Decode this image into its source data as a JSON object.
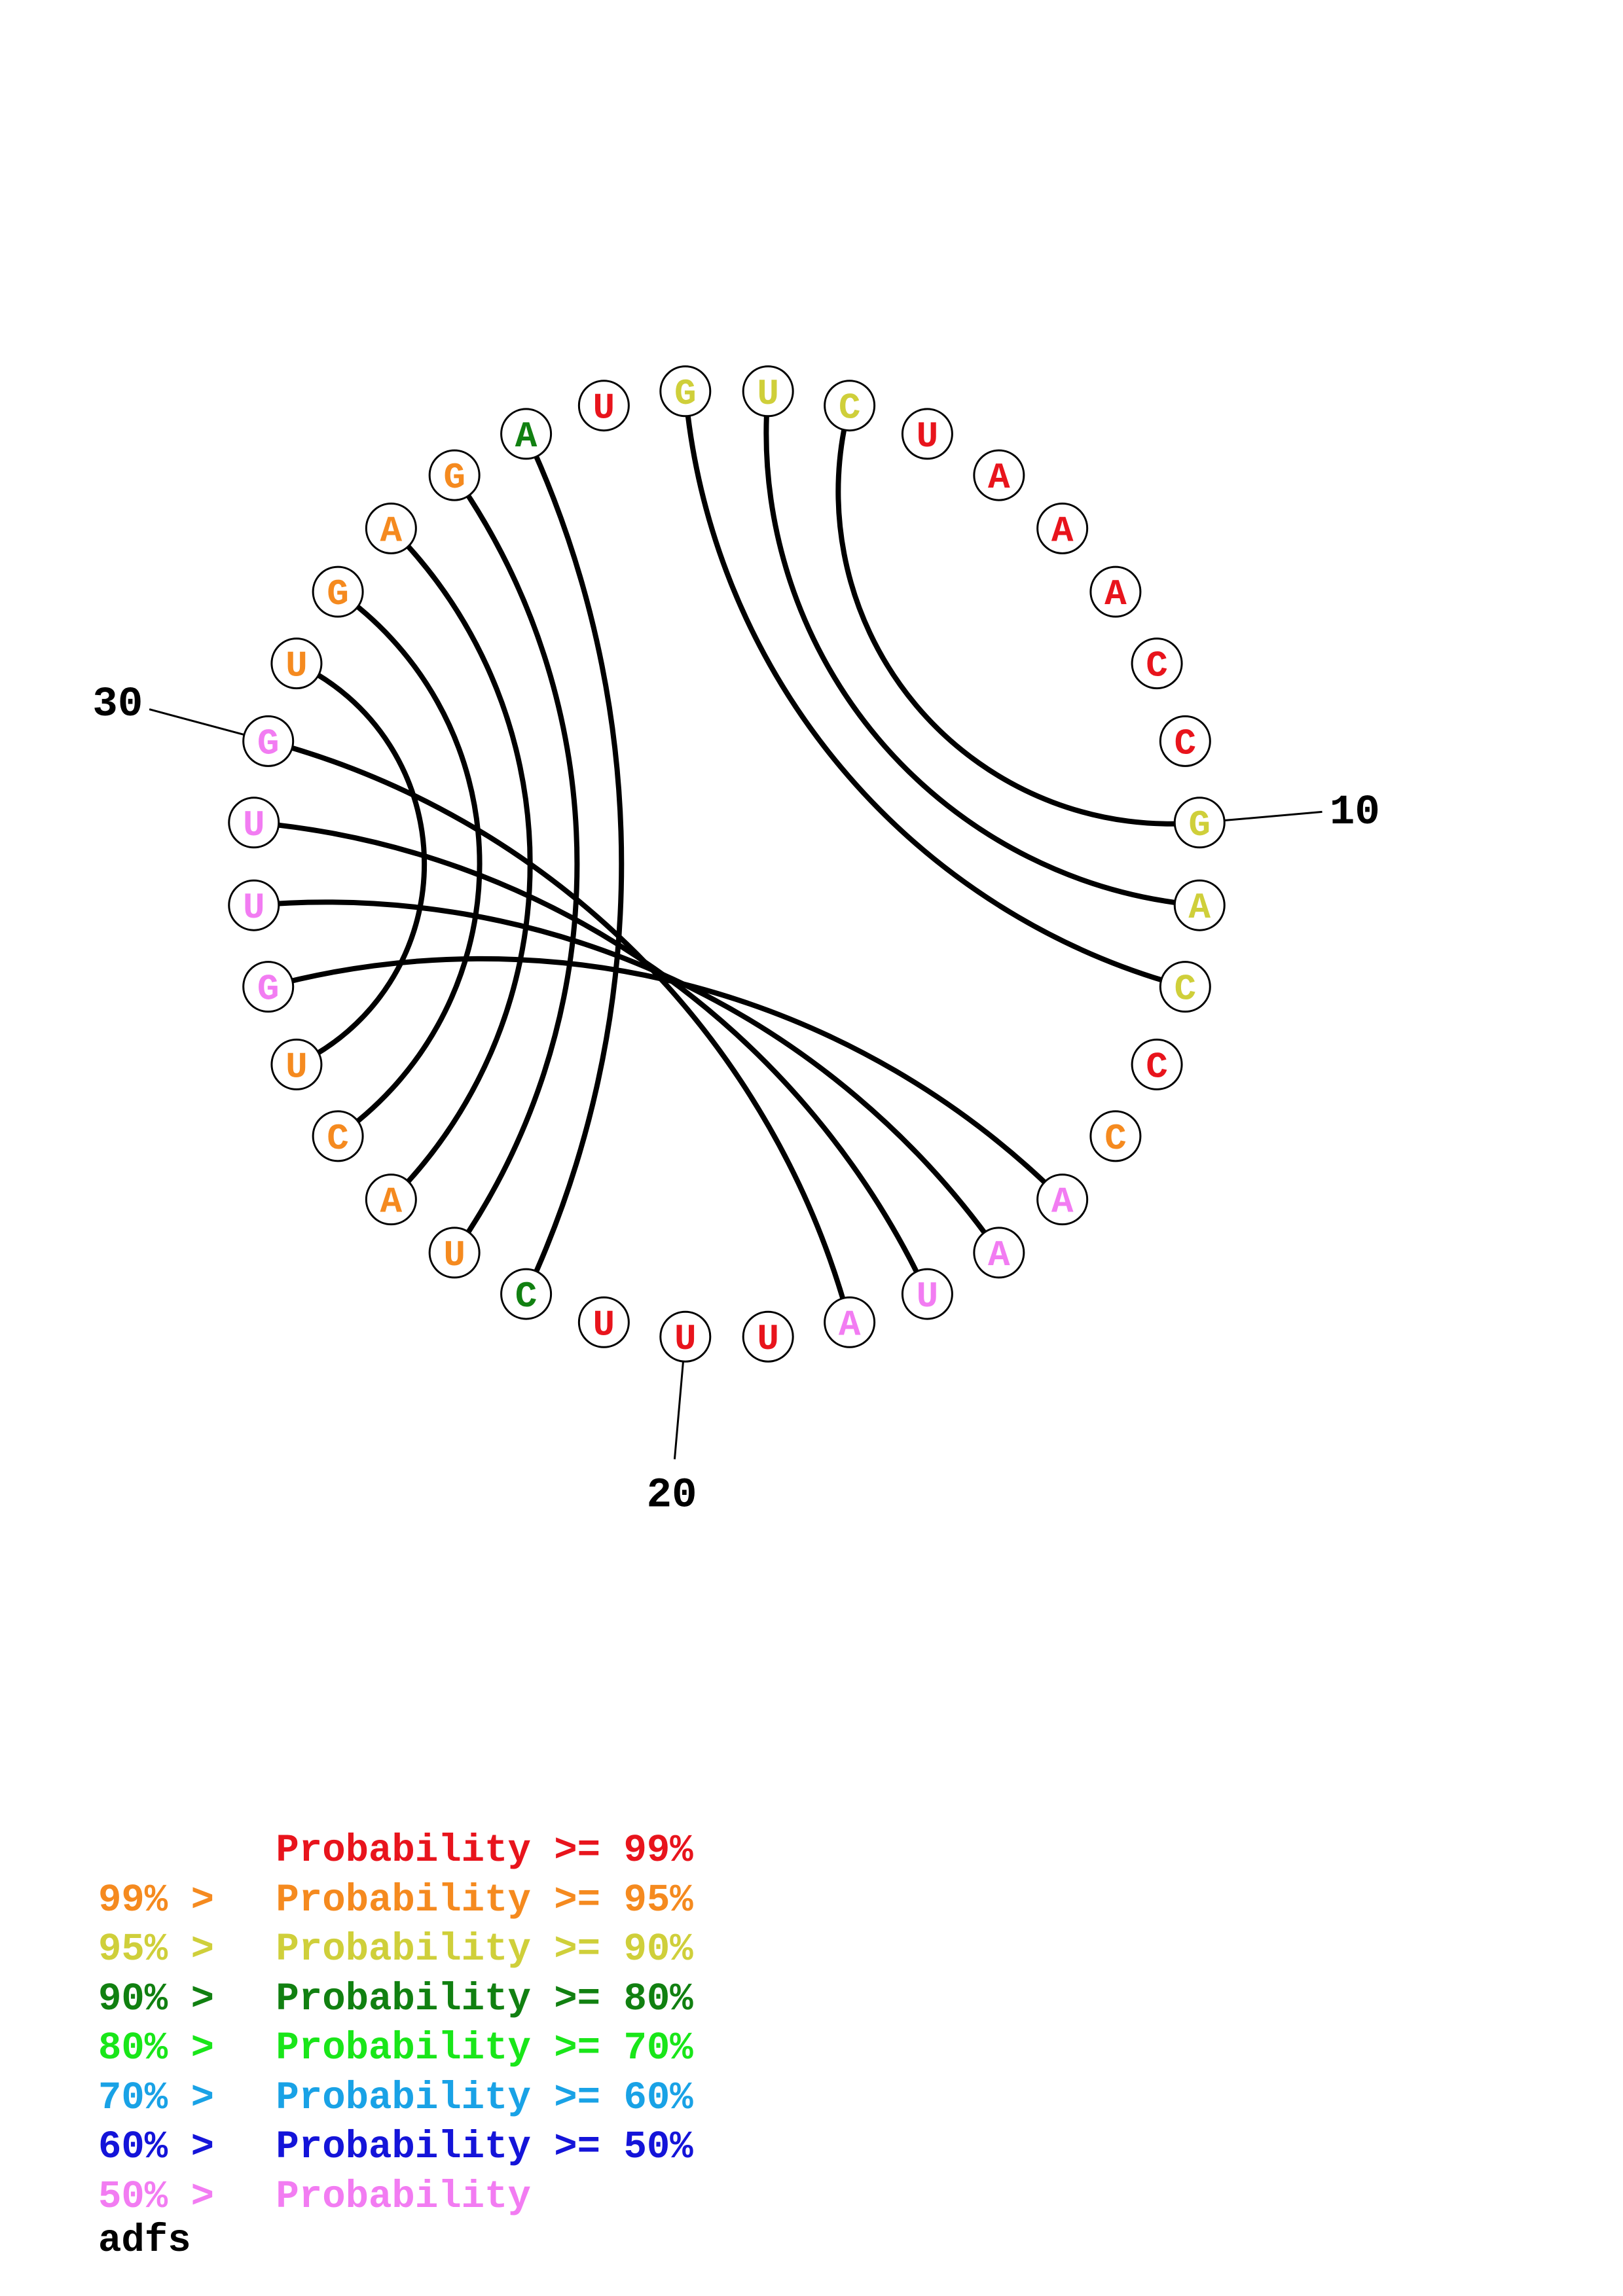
{
  "sequence": [
    "G",
    "U",
    "C",
    "U",
    "A",
    "A",
    "A",
    "C",
    "C",
    "G",
    "A",
    "C",
    "C",
    "C",
    "A",
    "A",
    "U",
    "A",
    "U",
    "U",
    "U",
    "C",
    "U",
    "A",
    "C",
    "U",
    "G",
    "U",
    "U",
    "G",
    "U",
    "G",
    "A",
    "G",
    "A",
    "U"
  ],
  "colors": {
    "red": "#e8141c",
    "orange": "#f58a1f",
    "yellow": "#cfcf3a",
    "dark_green": "#118011",
    "green": "#19e619",
    "cyan": "#19a2e6",
    "blue": "#1414d9",
    "pink": "#f27cf2"
  },
  "base_colors": [
    "yellow",
    "yellow",
    "yellow",
    "red",
    "red",
    "red",
    "red",
    "red",
    "red",
    "yellow",
    "yellow",
    "yellow",
    "red",
    "orange",
    "pink",
    "pink",
    "pink",
    "pink",
    "red",
    "red",
    "red",
    "dark_green",
    "orange",
    "orange",
    "orange",
    "orange",
    "pink",
    "pink",
    "pink",
    "pink",
    "orange",
    "orange",
    "orange",
    "orange",
    "dark_green",
    "red"
  ],
  "pairs": [
    [
      1,
      12
    ],
    [
      2,
      11
    ],
    [
      3,
      10
    ],
    [
      15,
      27
    ],
    [
      16,
      28
    ],
    [
      17,
      29
    ],
    [
      18,
      30
    ],
    [
      22,
      35
    ],
    [
      23,
      34
    ],
    [
      24,
      33
    ],
    [
      25,
      32
    ],
    [
      26,
      31
    ]
  ],
  "tick_labels": [
    {
      "index": 10,
      "label": "10"
    },
    {
      "index": 20,
      "label": "20"
    },
    {
      "index": 30,
      "label": "30"
    }
  ],
  "legend": [
    {
      "prefix": "",
      "text": "Probability >= 99%",
      "color": "red"
    },
    {
      "prefix": "99% >",
      "text": "Probability >= 95%",
      "color": "orange"
    },
    {
      "prefix": "95% >",
      "text": "Probability >= 90%",
      "color": "yellow"
    },
    {
      "prefix": "90% >",
      "text": "Probability >= 80%",
      "color": "dark_green"
    },
    {
      "prefix": "80% >",
      "text": "Probability >= 70%",
      "color": "green"
    },
    {
      "prefix": "70% >",
      "text": "Probability >= 60%",
      "color": "cyan"
    },
    {
      "prefix": "60% >",
      "text": "Probability >= 50%",
      "color": "blue"
    },
    {
      "prefix": "50% >",
      "text": "Probability",
      "color": "pink"
    }
  ],
  "caption": "adfs"
}
